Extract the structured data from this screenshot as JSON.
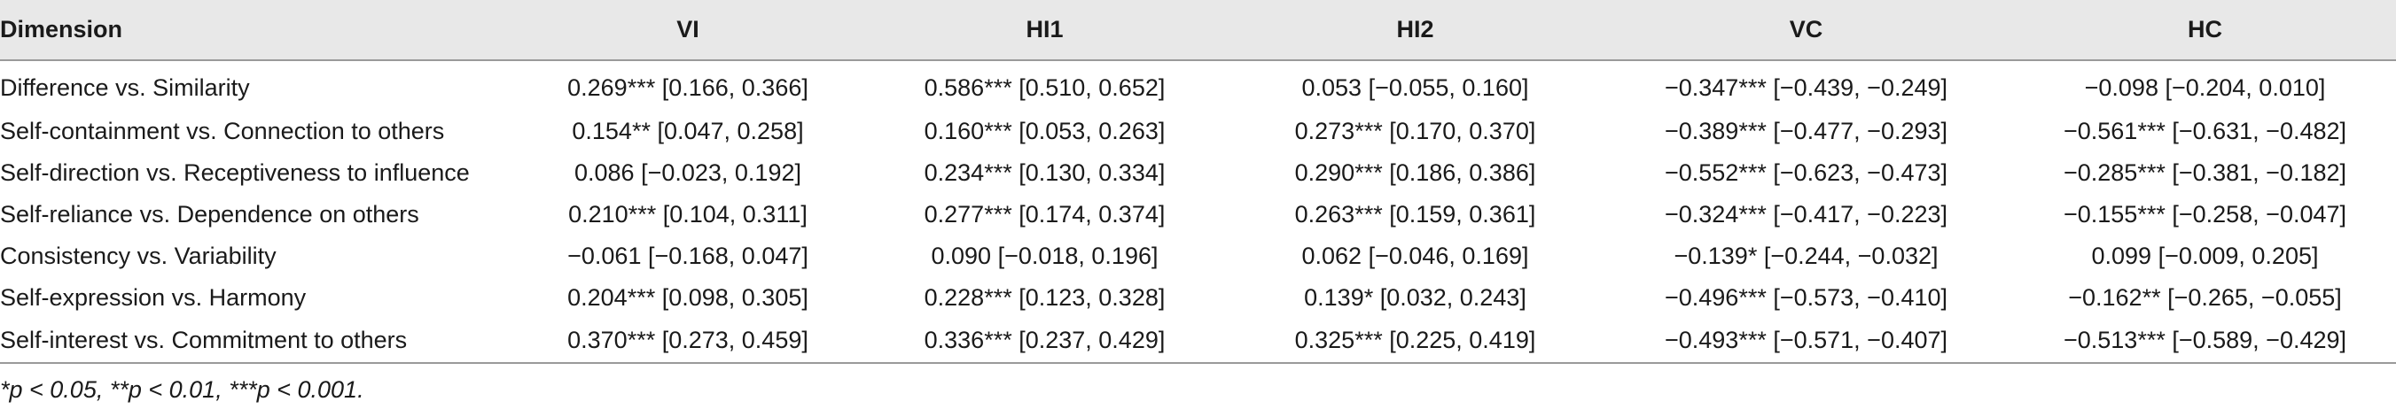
{
  "table": {
    "headers": [
      "Dimension",
      "VI",
      "HI1",
      "HI2",
      "VC",
      "HC"
    ],
    "rows": [
      [
        "Difference vs. Similarity",
        "0.269*** [0.166, 0.366]",
        "0.586*** [0.510, 0.652]",
        "0.053 [−0.055, 0.160]",
        "−0.347*** [−0.439, −0.249]",
        "−0.098 [−0.204, 0.010]"
      ],
      [
        "Self-containment vs. Connection to others",
        "0.154** [0.047, 0.258]",
        "0.160*** [0.053, 0.263]",
        "0.273*** [0.170, 0.370]",
        "−0.389*** [−0.477, −0.293]",
        "−0.561*** [−0.631, −0.482]"
      ],
      [
        "Self-direction vs. Receptiveness to influence",
        "0.086 [−0.023, 0.192]",
        "0.234*** [0.130, 0.334]",
        "0.290*** [0.186, 0.386]",
        "−0.552*** [−0.623, −0.473]",
        "−0.285*** [−0.381, −0.182]"
      ],
      [
        "Self-reliance vs. Dependence on others",
        "0.210*** [0.104, 0.311]",
        "0.277*** [0.174, 0.374]",
        "0.263*** [0.159, 0.361]",
        "−0.324*** [−0.417, −0.223]",
        "−0.155*** [−0.258, −0.047]"
      ],
      [
        "Consistency vs. Variability",
        "−0.061 [−0.168, 0.047]",
        "0.090 [−0.018, 0.196]",
        "0.062 [−0.046, 0.169]",
        "−0.139* [−0.244, −0.032]",
        "0.099 [−0.009, 0.205]"
      ],
      [
        "Self-expression vs. Harmony",
        "0.204*** [0.098, 0.305]",
        "0.228*** [0.123, 0.328]",
        "0.139* [0.032, 0.243]",
        "−0.496*** [−0.573, −0.410]",
        "−0.162** [−0.265, −0.055]"
      ],
      [
        "Self-interest vs. Commitment to others",
        "0.370*** [0.273, 0.459]",
        "0.336*** [0.237, 0.429]",
        "0.325*** [0.225, 0.419]",
        "−0.493*** [−0.571, −0.407]",
        "−0.513*** [−0.589, −0.429]"
      ]
    ]
  },
  "footnote": "*p < 0.05, **p < 0.01, ***p < 0.001."
}
